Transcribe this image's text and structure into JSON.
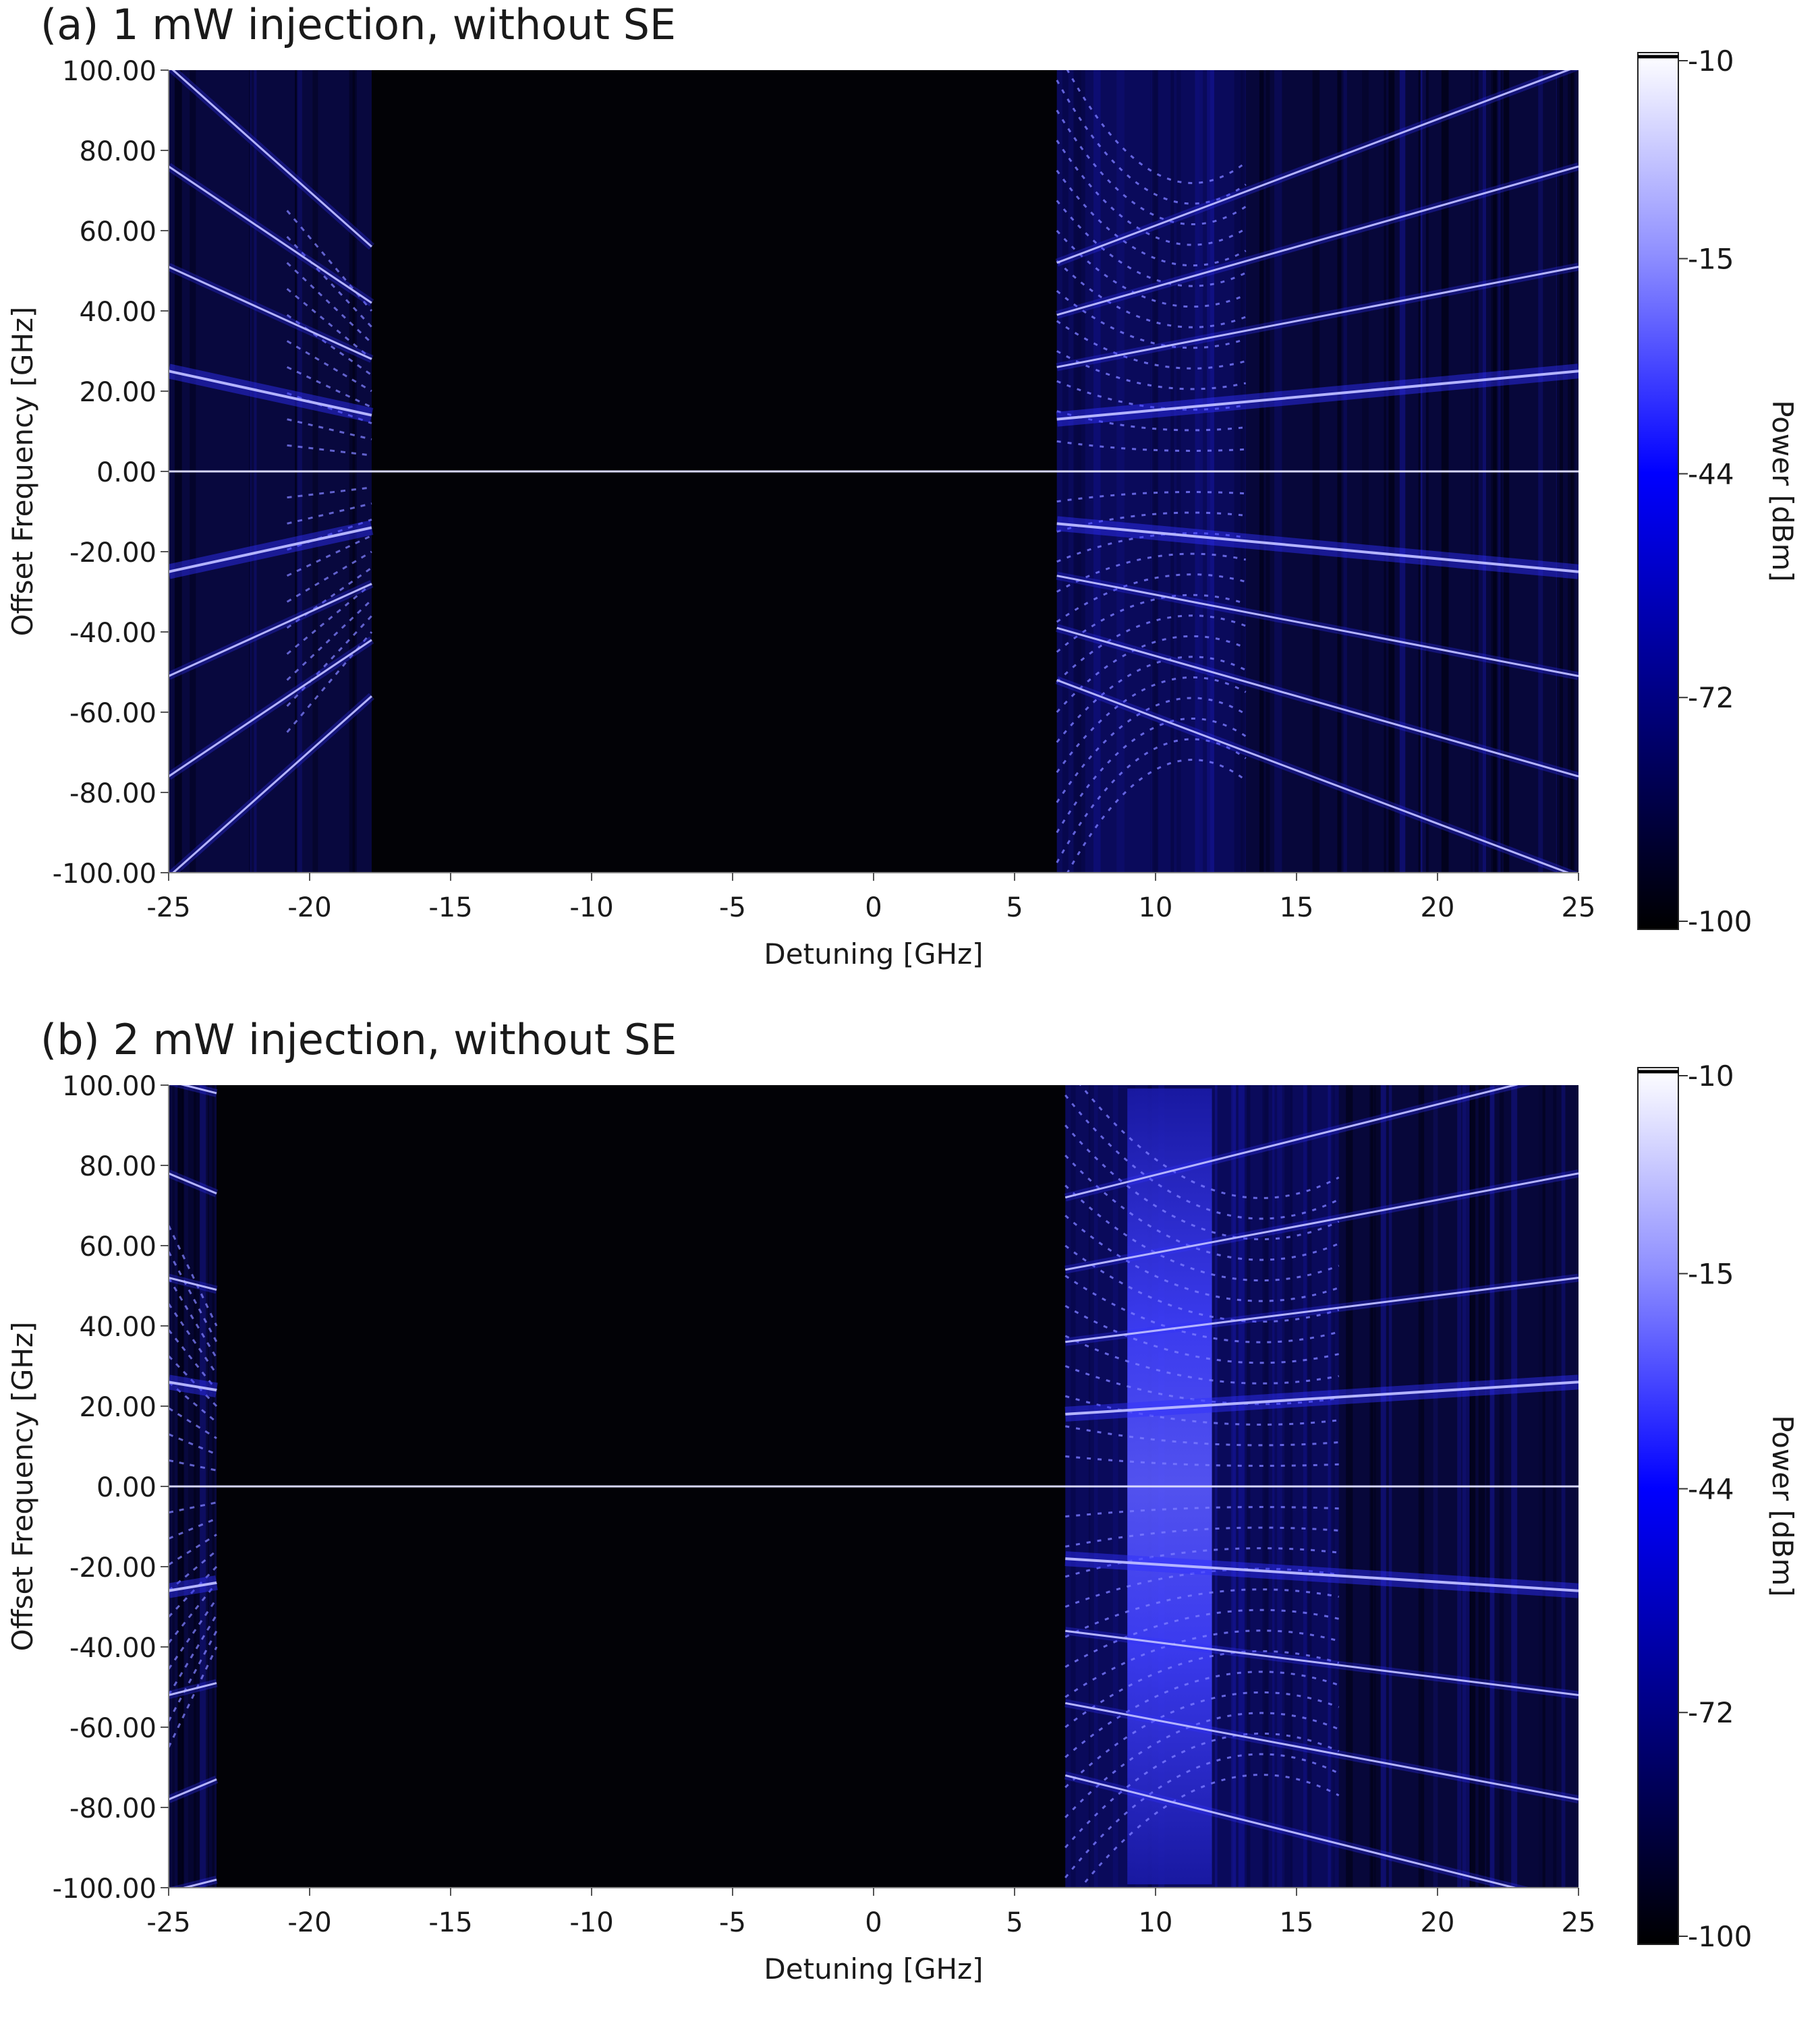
{
  "chart_data": [
    {
      "type": "heatmap",
      "title": "(a) 1 mW injection, without SE",
      "xlabel": "Detuning [GHz]",
      "ylabel": "Offset Frequency [GHz]",
      "xlim": [
        -25,
        25
      ],
      "ylim": [
        -100,
        100
      ],
      "x_ticks": [
        "-25",
        "-20",
        "-15",
        "-10",
        "-5",
        "0",
        "5",
        "10",
        "15",
        "20",
        "25"
      ],
      "y_ticks": [
        "100.00",
        "80.00",
        "60.00",
        "40.00",
        "20.00",
        "0.00",
        "-20.00",
        "-40.00",
        "-60.00",
        "-80.00",
        "-100.00"
      ],
      "colorbar": {
        "label": "Power [dBm]",
        "ticks": [
          "-10",
          "-15",
          "-44",
          "-72",
          "-100"
        ],
        "colors": [
          "#ffffff",
          "#8f8fff",
          "#0000ff",
          "#000080",
          "#000000"
        ]
      },
      "dark_region": [
        -17.8,
        6.5
      ],
      "center_line_y": 0,
      "left_band": {
        "x_start": -25,
        "x_end": -17.8,
        "sidebands": [
          {
            "y_at_start": 25,
            "y_at_end": 14
          },
          {
            "y_at_start": 51,
            "y_at_end": 28
          },
          {
            "y_at_start": 76,
            "y_at_end": 42
          },
          {
            "y_at_start": 101,
            "y_at_end": 56
          }
        ]
      },
      "right_band": {
        "x_start": 6.5,
        "x_end": 25,
        "chaotic_region": [
          6.5,
          13.2
        ],
        "sidebands": [
          {
            "y_at_start": 13,
            "y_at_end": 25
          },
          {
            "y_at_start": 26,
            "y_at_end": 51
          },
          {
            "y_at_start": 39,
            "y_at_end": 76
          },
          {
            "y_at_start": 52,
            "y_at_end": 101
          }
        ]
      }
    },
    {
      "type": "heatmap",
      "title": "(b) 2 mW injection, without SE",
      "xlabel": "Detuning [GHz]",
      "ylabel": "Offset Frequency [GHz]",
      "xlim": [
        -25,
        25
      ],
      "ylim": [
        -100,
        100
      ],
      "x_ticks": [
        "-25",
        "-20",
        "-15",
        "-10",
        "-5",
        "0",
        "5",
        "10",
        "15",
        "20",
        "25"
      ],
      "y_ticks": [
        "100.00",
        "80.00",
        "60.00",
        "40.00",
        "20.00",
        "0.00",
        "-20.00",
        "-40.00",
        "-60.00",
        "-80.00",
        "-100.00"
      ],
      "colorbar": {
        "label": "Power [dBm]",
        "ticks": [
          "-10",
          "-15",
          "-44",
          "-72",
          "-100"
        ],
        "colors": [
          "#ffffff",
          "#8f8fff",
          "#0000ff",
          "#000080",
          "#000000"
        ]
      },
      "dark_region": [
        -23.3,
        6.8
      ],
      "center_line_y": 0,
      "left_band": {
        "x_start": -25,
        "x_end": -23.3,
        "sidebands": [
          {
            "y_at_start": 26,
            "y_at_end": 24
          },
          {
            "y_at_start": 52,
            "y_at_end": 49
          },
          {
            "y_at_start": 78,
            "y_at_end": 73
          },
          {
            "y_at_start": 101,
            "y_at_end": 98
          }
        ]
      },
      "right_band": {
        "x_start": 6.8,
        "x_end": 25,
        "chaotic_region": [
          6.8,
          16.5
        ],
        "glow_region": [
          9.0,
          12.0
        ],
        "sidebands": [
          {
            "y_at_start": 18,
            "y_at_end": 26
          },
          {
            "y_at_start": 36,
            "y_at_end": 52
          },
          {
            "y_at_start": 54,
            "y_at_end": 78
          },
          {
            "y_at_start": 72,
            "y_at_end": 104
          }
        ]
      }
    }
  ]
}
